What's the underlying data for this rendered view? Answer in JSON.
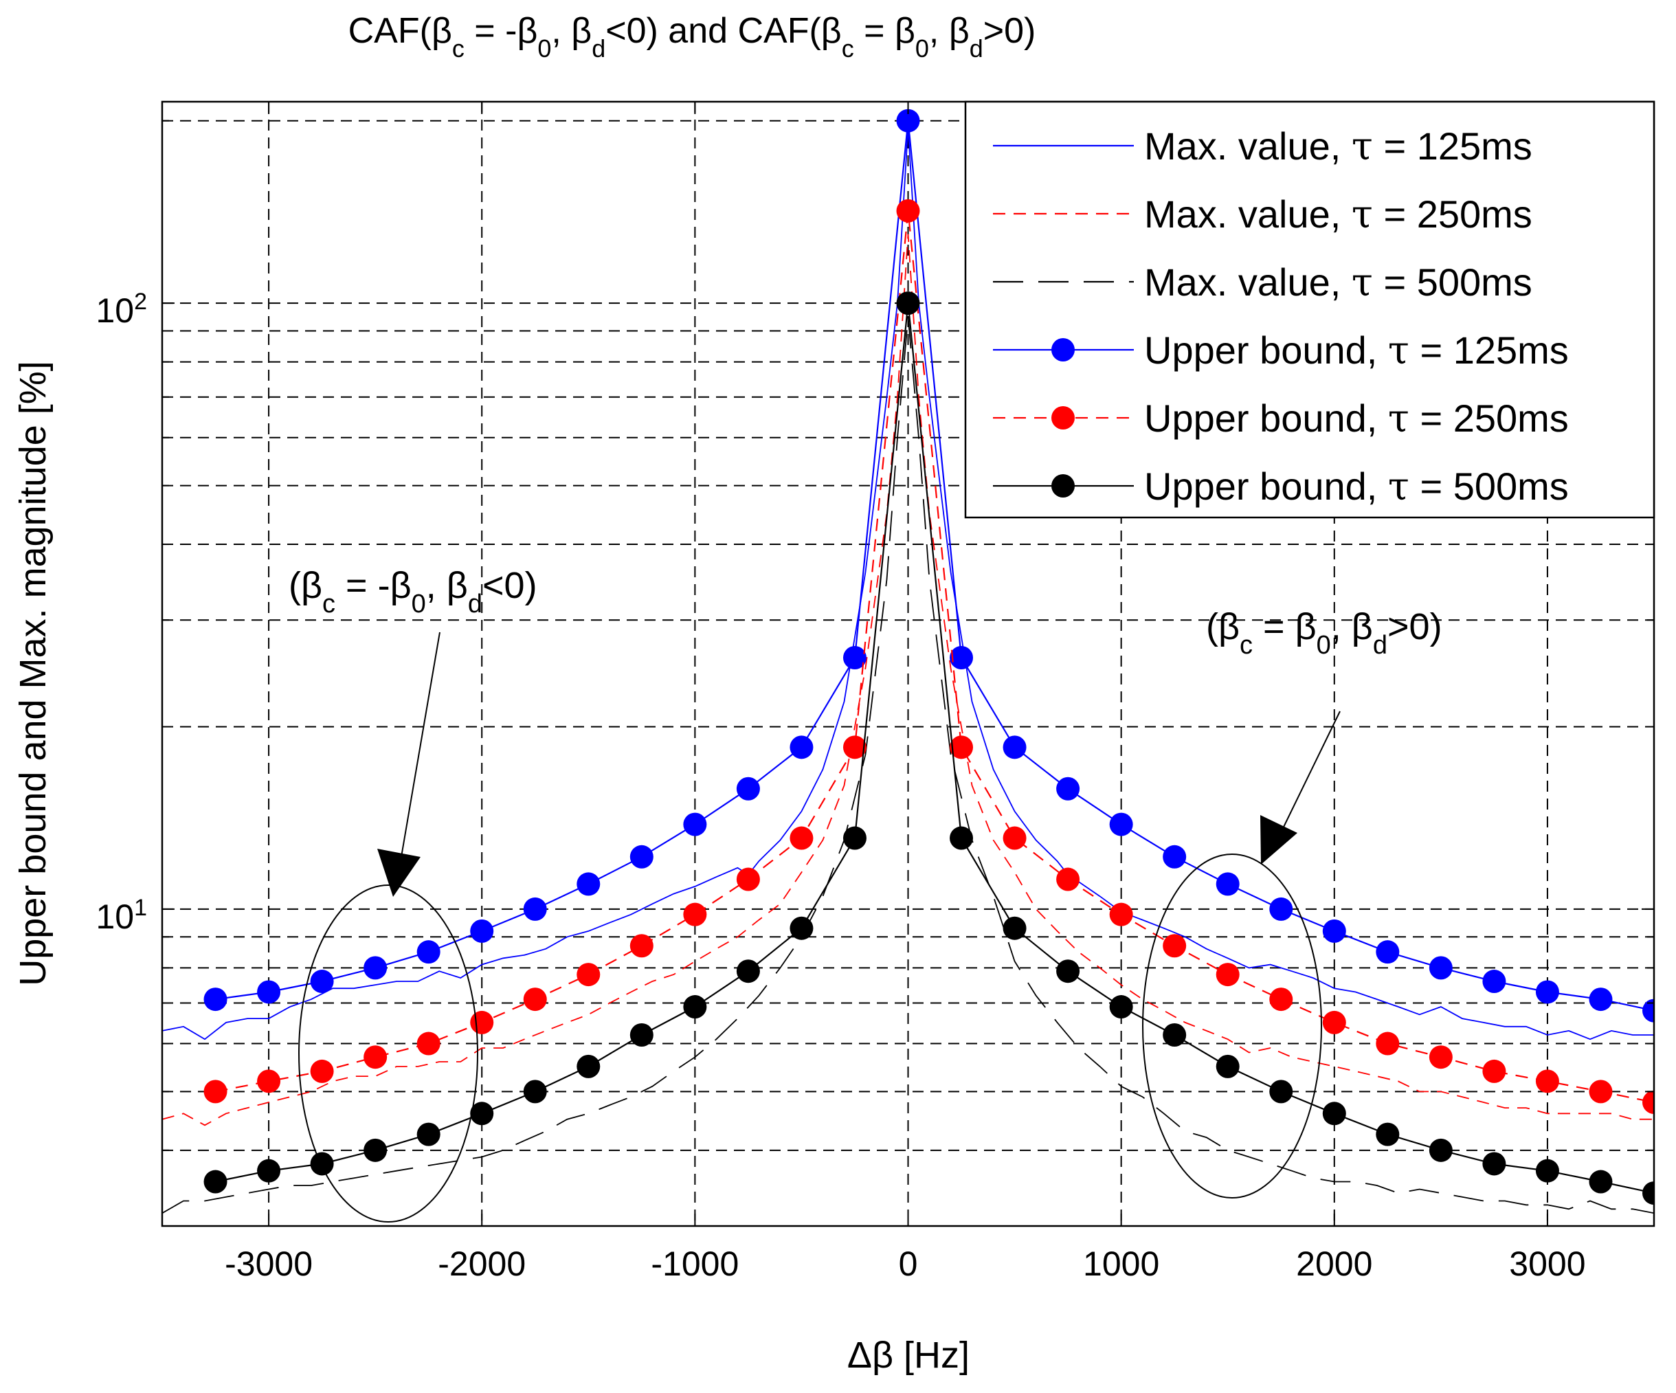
{
  "chart_data": {
    "type": "line",
    "title": "CAF(β_c = -β_0, β_d<0) and CAF(β_c = β_0, β_d>0)",
    "title_parts": {
      "lead": "CAF(β",
      "sub1": "c",
      "mid1": " = -β",
      "sub2": "0",
      "mid2": ", β",
      "sub3": "d",
      "mid3": "<0) and CAF(β",
      "sub4": "c",
      "mid4": " = β",
      "sub5": "0",
      "mid5": ", β",
      "sub6": "d",
      "tail": ">0)"
    },
    "xlabel": "Δβ [Hz]",
    "ylabel": "Upper bound and Max. magnitude [%]",
    "xlim": [
      -3500,
      3500
    ],
    "ylim": [
      3.0,
      215
    ],
    "yscale": "log",
    "xticks": [
      -3000,
      -2000,
      -1000,
      0,
      1000,
      2000,
      3000
    ],
    "xtick_labels": [
      "-3000",
      "-2000",
      "-1000",
      "0",
      "1000",
      "2000",
      "3000"
    ],
    "yticks": [
      10,
      100
    ],
    "ytick_labels": [
      {
        "base": "10",
        "exp": "1"
      },
      {
        "base": "10",
        "exp": "2"
      }
    ],
    "grid": true,
    "legend_position": "top-right",
    "series": [
      {
        "name": "Max. value, τ = 125ms",
        "label_lead": "Max. value, ",
        "tau": "τ",
        "label_tail": " = 125ms",
        "color": "#0000ff",
        "style": "solid",
        "marker": "none",
        "x": [
          -3500,
          -3400,
          -3300,
          -3200,
          -3100,
          -3000,
          -2900,
          -2800,
          -2700,
          -2600,
          -2500,
          -2400,
          -2300,
          -2200,
          -2100,
          -2000,
          -1900,
          -1800,
          -1700,
          -1600,
          -1500,
          -1400,
          -1300,
          -1200,
          -1100,
          -1000,
          -900,
          -800,
          -750,
          -700,
          -600,
          -500,
          -400,
          -300,
          -200,
          -100,
          -50,
          0,
          50,
          100,
          200,
          300,
          400,
          500,
          600,
          700,
          750,
          800,
          900,
          1000,
          1100,
          1200,
          1300,
          1400,
          1500,
          1600,
          1700,
          1800,
          1900,
          2000,
          2100,
          2200,
          2300,
          2400,
          2500,
          2600,
          2700,
          2800,
          2900,
          3000,
          3100,
          3200,
          3300,
          3400,
          3500
        ],
        "values": [
          6.3,
          6.4,
          6.1,
          6.5,
          6.6,
          6.6,
          6.9,
          7.1,
          7.4,
          7.4,
          7.5,
          7.6,
          7.6,
          7.9,
          7.7,
          8.1,
          8.3,
          8.4,
          8.6,
          9.0,
          9.2,
          9.5,
          9.8,
          10.2,
          10.6,
          10.9,
          11.3,
          11.7,
          11.4,
          12.0,
          13.0,
          14.5,
          17.0,
          22.0,
          36.0,
          70.0,
          100.0,
          195.0,
          100.0,
          70.0,
          36.0,
          22.0,
          17.0,
          14.5,
          13.0,
          12.0,
          11.4,
          11.1,
          10.5,
          9.9,
          9.6,
          9.3,
          9.0,
          8.6,
          8.3,
          8.0,
          8.1,
          7.9,
          7.7,
          7.4,
          7.3,
          7.1,
          6.9,
          6.7,
          6.9,
          6.6,
          6.5,
          6.4,
          6.4,
          6.2,
          6.3,
          6.1,
          6.3,
          6.2,
          6.2
        ]
      },
      {
        "name": "Max. value, τ = 250ms",
        "label_lead": "Max. value, ",
        "tau": "τ",
        "label_tail": " = 250ms",
        "color": "#ff0000",
        "style": "dashed",
        "marker": "none",
        "x": [
          -3500,
          -3400,
          -3300,
          -3200,
          -3100,
          -3000,
          -2900,
          -2800,
          -2700,
          -2600,
          -2500,
          -2400,
          -2300,
          -2200,
          -2100,
          -2000,
          -1900,
          -1800,
          -1700,
          -1600,
          -1500,
          -1400,
          -1300,
          -1200,
          -1100,
          -1000,
          -900,
          -800,
          -700,
          -600,
          -500,
          -400,
          -300,
          -200,
          -100,
          -50,
          0,
          50,
          100,
          200,
          300,
          400,
          500,
          600,
          700,
          800,
          900,
          1000,
          1100,
          1200,
          1300,
          1400,
          1500,
          1600,
          1700,
          1800,
          1900,
          2000,
          2100,
          2200,
          2300,
          2400,
          2500,
          2600,
          2700,
          2800,
          2900,
          3000,
          3100,
          3200,
          3300,
          3400,
          3500
        ],
        "values": [
          4.5,
          4.6,
          4.4,
          4.6,
          4.7,
          4.8,
          4.9,
          5.0,
          5.2,
          5.3,
          5.3,
          5.5,
          5.5,
          5.6,
          5.6,
          5.9,
          5.9,
          6.1,
          6.3,
          6.5,
          6.7,
          7.0,
          7.3,
          7.6,
          7.8,
          8.2,
          8.6,
          9.0,
          9.6,
          10.2,
          11.5,
          13.0,
          16.0,
          25.0,
          45.0,
          70.0,
          130.0,
          70.0,
          45.0,
          25.0,
          16.0,
          13.0,
          11.5,
          10.0,
          9.2,
          8.5,
          8.0,
          7.5,
          7.1,
          6.8,
          6.5,
          6.3,
          6.1,
          5.8,
          5.9,
          5.7,
          5.6,
          5.5,
          5.4,
          5.3,
          5.2,
          5.0,
          5.0,
          4.9,
          4.8,
          4.7,
          4.7,
          4.6,
          4.6,
          4.6,
          4.6,
          4.5,
          4.5
        ]
      },
      {
        "name": "Max. value, τ = 500ms",
        "label_lead": "Max. value, ",
        "tau": "τ",
        "label_tail": " = 500ms",
        "color": "#000000",
        "style": "dashed-long",
        "marker": "none",
        "x": [
          -3500,
          -3400,
          -3300,
          -3200,
          -3100,
          -3000,
          -2900,
          -2800,
          -2700,
          -2600,
          -2500,
          -2400,
          -2300,
          -2200,
          -2100,
          -2000,
          -1900,
          -1800,
          -1700,
          -1600,
          -1500,
          -1400,
          -1300,
          -1200,
          -1100,
          -1000,
          -900,
          -800,
          -700,
          -600,
          -500,
          -400,
          -300,
          -200,
          -100,
          -50,
          0,
          50,
          100,
          200,
          300,
          400,
          500,
          600,
          700,
          800,
          900,
          1000,
          1100,
          1200,
          1300,
          1400,
          1500,
          1600,
          1700,
          1800,
          1900,
          2000,
          2100,
          2200,
          2300,
          2400,
          2500,
          2600,
          2700,
          2800,
          2900,
          3000,
          3100,
          3200,
          3300,
          3400,
          3500
        ],
        "values": [
          3.15,
          3.3,
          3.3,
          3.35,
          3.4,
          3.45,
          3.5,
          3.5,
          3.55,
          3.6,
          3.65,
          3.7,
          3.75,
          3.8,
          3.85,
          3.9,
          4.0,
          4.15,
          4.3,
          4.5,
          4.6,
          4.75,
          4.9,
          5.1,
          5.4,
          5.7,
          6.1,
          6.6,
          7.2,
          8.0,
          9.0,
          10.5,
          13.0,
          18.0,
          35.0,
          60.0,
          95.0,
          60.0,
          35.0,
          18.0,
          13.0,
          10.5,
          8.2,
          7.2,
          6.5,
          5.9,
          5.5,
          5.1,
          4.9,
          4.6,
          4.3,
          4.2,
          4.0,
          3.9,
          3.8,
          3.7,
          3.6,
          3.55,
          3.55,
          3.5,
          3.4,
          3.45,
          3.4,
          3.35,
          3.3,
          3.3,
          3.25,
          3.25,
          3.2,
          3.3,
          3.2,
          3.2,
          3.15
        ]
      },
      {
        "name": "Upper bound, τ = 125ms",
        "label_lead": "Upper bound, ",
        "tau": "τ",
        "label_tail": " = 125ms",
        "color": "#0000ff",
        "style": "solid",
        "marker": "circle",
        "x": [
          -3250,
          -3000,
          -2750,
          -2500,
          -2250,
          -2000,
          -1750,
          -1500,
          -1250,
          -1000,
          -750,
          -500,
          -250,
          0,
          250,
          500,
          750,
          1000,
          1250,
          1500,
          1750,
          2000,
          2250,
          2500,
          2750,
          3000,
          3250,
          3500
        ],
        "values": [
          7.1,
          7.3,
          7.6,
          8.0,
          8.5,
          9.2,
          10.0,
          11.0,
          12.2,
          13.8,
          15.8,
          18.5,
          26.0,
          200.0,
          26.0,
          18.5,
          15.8,
          13.8,
          12.2,
          11.0,
          10.0,
          9.2,
          8.5,
          8.0,
          7.6,
          7.3,
          7.1,
          6.8
        ]
      },
      {
        "name": "Upper bound, τ = 250ms",
        "label_lead": "Upper bound, ",
        "tau": "τ",
        "label_tail": " = 250ms",
        "color": "#ff0000",
        "style": "dashed",
        "marker": "circle",
        "x": [
          -3250,
          -3000,
          -2750,
          -2500,
          -2250,
          -2000,
          -1750,
          -1500,
          -1250,
          -1000,
          -750,
          -500,
          -250,
          0,
          250,
          500,
          750,
          1000,
          1250,
          1500,
          1750,
          2000,
          2250,
          2500,
          2750,
          3000,
          3250,
          3500
        ],
        "values": [
          5.0,
          5.2,
          5.4,
          5.7,
          6.0,
          6.5,
          7.1,
          7.8,
          8.7,
          9.8,
          11.2,
          13.1,
          18.5,
          142.0,
          18.5,
          13.1,
          11.2,
          9.8,
          8.7,
          7.8,
          7.1,
          6.5,
          6.0,
          5.7,
          5.4,
          5.2,
          5.0,
          4.8
        ]
      },
      {
        "name": "Upper bound, τ = 500ms",
        "label_lead": "Upper bound, ",
        "tau": "τ",
        "label_tail": " = 500ms",
        "color": "#000000",
        "style": "solid",
        "marker": "circle",
        "x": [
          -3250,
          -3000,
          -2750,
          -2500,
          -2250,
          -2000,
          -1750,
          -1500,
          -1250,
          -1000,
          -750,
          -500,
          -250,
          0,
          250,
          500,
          750,
          1000,
          1250,
          1500,
          1750,
          2000,
          2250,
          2500,
          2750,
          3000,
          3250,
          3500
        ],
        "values": [
          3.55,
          3.7,
          3.8,
          4.0,
          4.25,
          4.6,
          5.0,
          5.5,
          6.2,
          6.9,
          7.9,
          9.3,
          13.1,
          100.0,
          13.1,
          9.3,
          7.9,
          6.9,
          6.2,
          5.5,
          5.0,
          4.6,
          4.25,
          4.0,
          3.8,
          3.7,
          3.55,
          3.4
        ]
      }
    ],
    "annotations": [
      {
        "lead": "(β",
        "sub1": "c",
        "mid1": " = -β",
        "sub2": "0",
        "mid2": ", β",
        "sub3": "d",
        "tail": "<0)",
        "side": "left"
      },
      {
        "lead": "(β",
        "sub1": "c",
        "mid1": " = β",
        "sub2": "0",
        "mid2": ", β",
        "sub3": "d",
        "tail": ">0)",
        "side": "right"
      }
    ]
  }
}
